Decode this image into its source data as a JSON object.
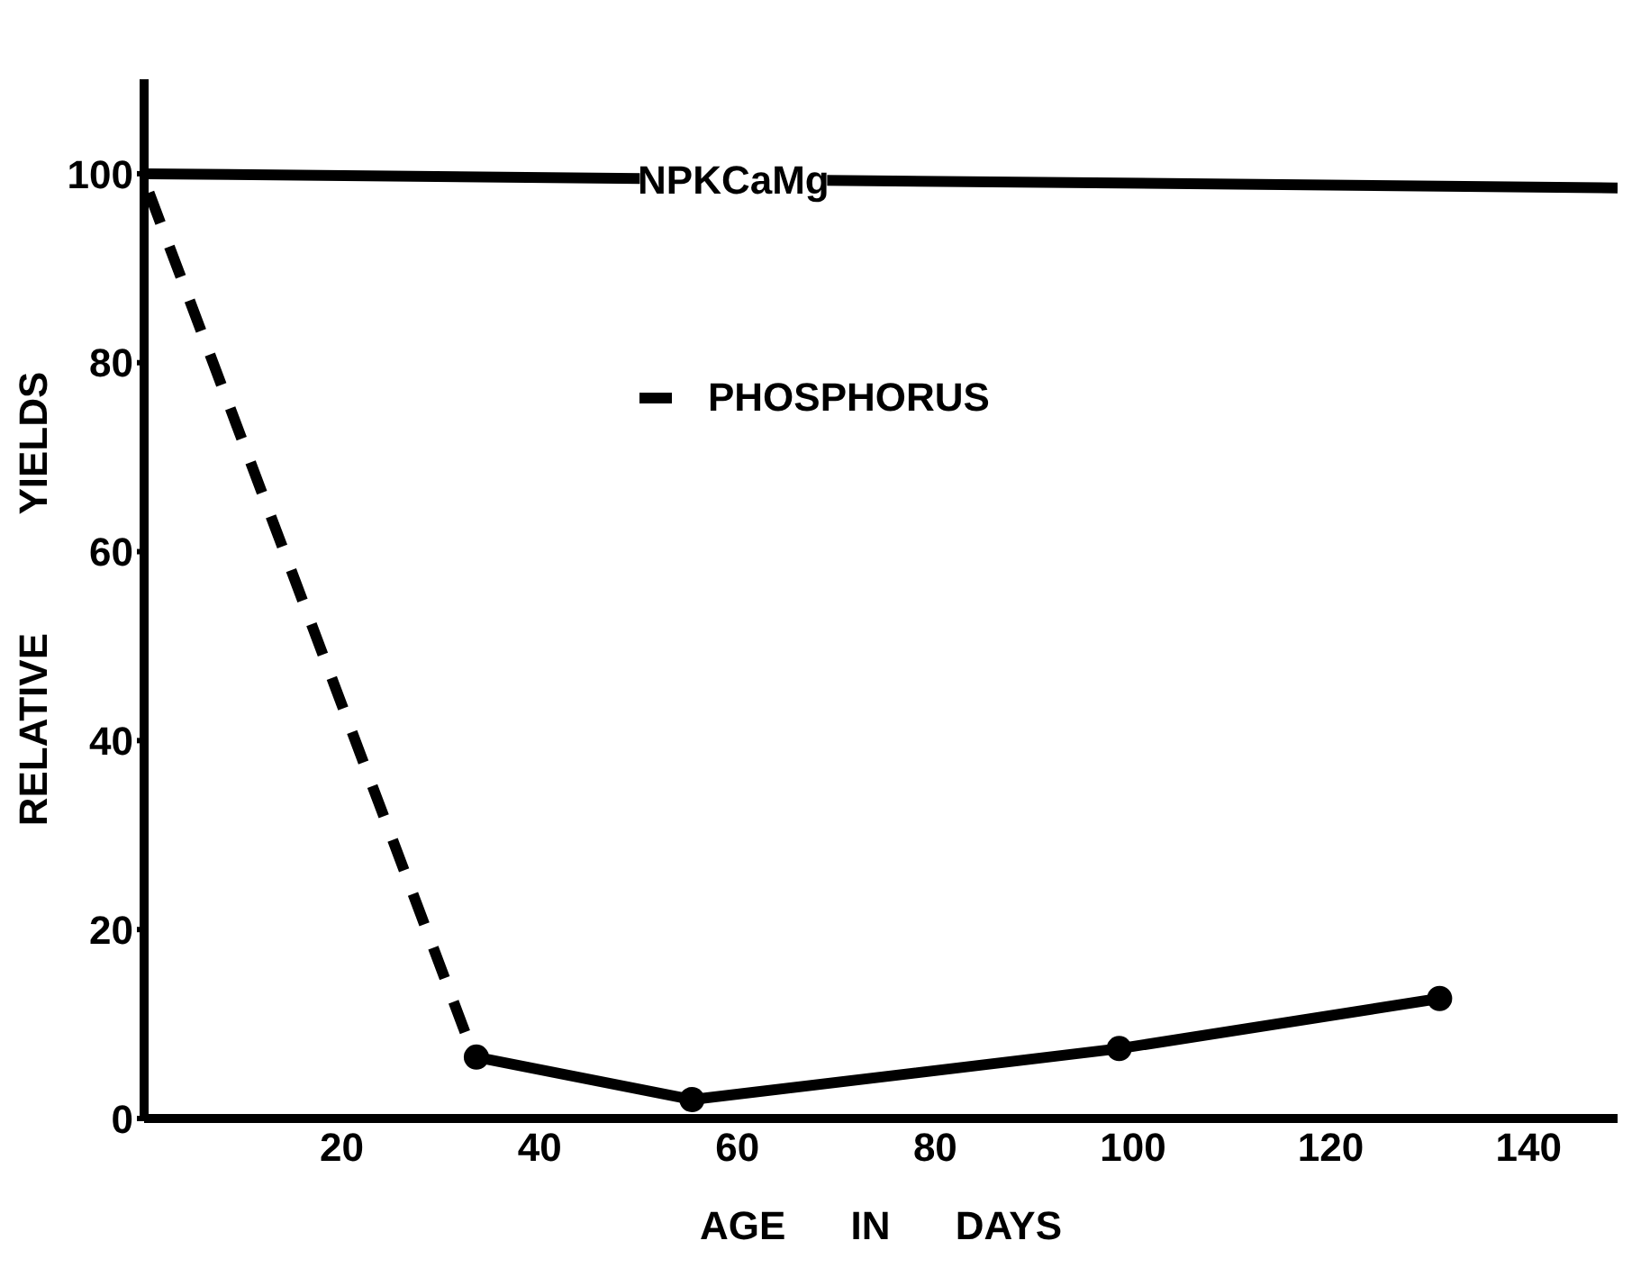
{
  "chart_data": {
    "type": "line",
    "xlabel": "AGE IN DAYS",
    "ylabel": "RELATIVE YIELDS",
    "xlim": [
      0,
      149
    ],
    "ylim": [
      0,
      110
    ],
    "xticks": [
      20,
      40,
      60,
      80,
      100,
      120,
      140
    ],
    "yticks": [
      0,
      20,
      40,
      60,
      80,
      100
    ],
    "legend": "top",
    "series": [
      {
        "name": "NPKCaMg",
        "color": "#000000",
        "x": [
          0,
          149
        ],
        "values": [
          100,
          98.5
        ],
        "marker": "none",
        "line_style": "solid"
      },
      {
        "name": "PHOSPHORUS",
        "color": "#000000",
        "x": [
          0.5,
          32.5
        ],
        "values": [
          98,
          9
        ],
        "marker": "none",
        "line_style": "dashed"
      },
      {
        "color": "#000000",
        "x": [
          33.6,
          55.4,
          98.6,
          131
        ],
        "values": [
          6.5,
          2,
          7.4,
          12.7
        ],
        "marker": "circle",
        "line_style": "solid"
      }
    ]
  }
}
